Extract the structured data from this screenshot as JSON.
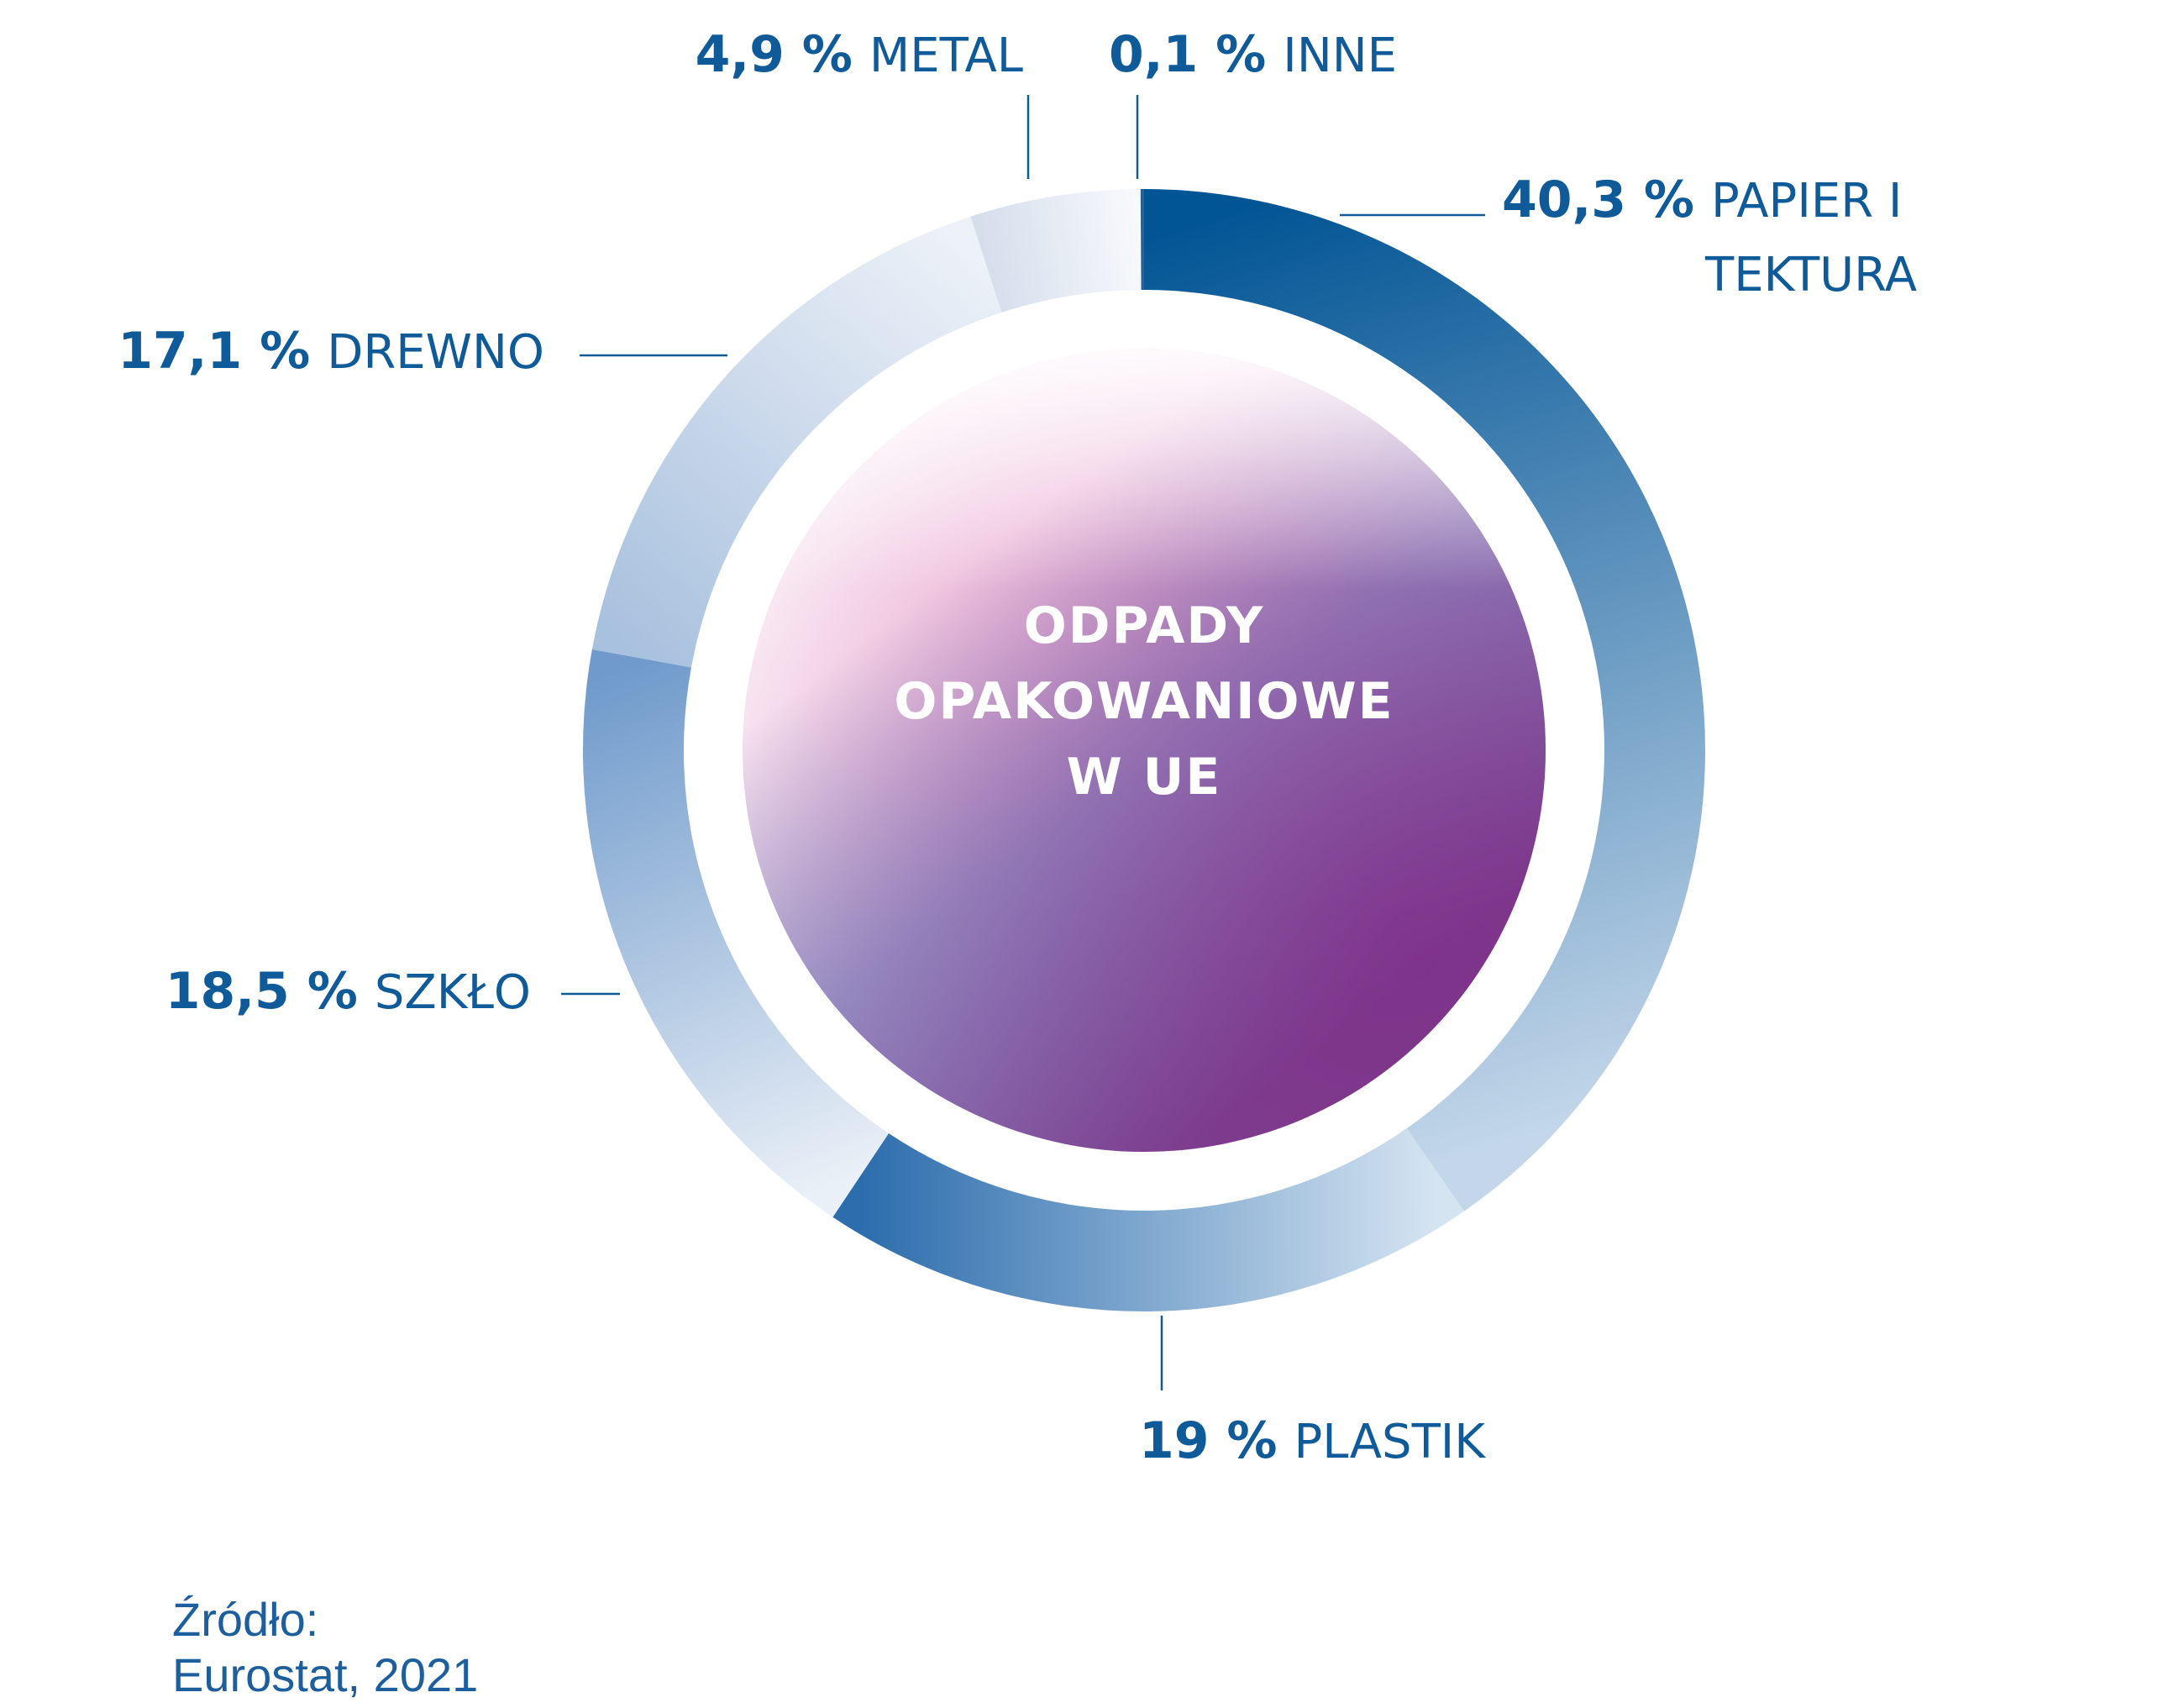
{
  "colors": {
    "accent": "#105a97",
    "label_text": "#0f5a98",
    "source_text": "#1d5e9c",
    "center_pink": "#e8459a",
    "center_purple": "#7a3d8d",
    "center_blue": "#4a5aa5"
  },
  "chart_data": {
    "type": "pie",
    "donut": true,
    "center_title": [
      "ODPADY",
      "OPAKOWANIOWE",
      "W UE"
    ],
    "unit": "%",
    "slices": [
      {
        "pct_label": "40,3 %",
        "name_lines": [
          "PAPIER I",
          "TEKTURA"
        ],
        "value": 40.3
      },
      {
        "pct_label": "19 %",
        "name_lines": [
          "PLASTIK"
        ],
        "value": 19.0
      },
      {
        "pct_label": "18,5 %",
        "name_lines": [
          "SZKŁO"
        ],
        "value": 18.5
      },
      {
        "pct_label": "17,1 %",
        "name_lines": [
          "DREWNO"
        ],
        "value": 17.1
      },
      {
        "pct_label": "4,9 %",
        "name_lines": [
          "METAL"
        ],
        "value": 4.9
      },
      {
        "pct_label": "0,1 %",
        "name_lines": [
          "INNE"
        ],
        "value": 0.1
      }
    ]
  },
  "source": {
    "line1": "Źródło:",
    "line2": "Eurostat, 2021"
  }
}
